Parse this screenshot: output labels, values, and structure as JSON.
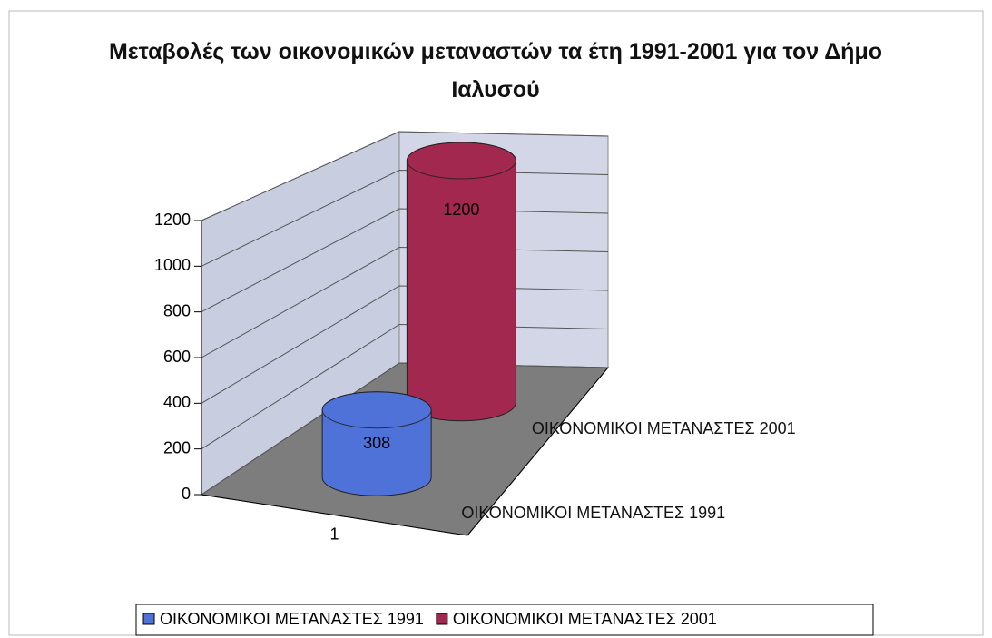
{
  "chart_data": {
    "type": "cylinder3d",
    "title": "Μεταβολές των οικονομικών μεταναστών τα έτη 1991-2001 για τον Δήμο Ιαλυσού",
    "categories": [
      "1"
    ],
    "series": [
      {
        "name": "ΟΙΚΟΝΟΜΙΚΟΙ ΜΕΤΑΝΑΣΤΕΣ 1991",
        "color": "#4f72d8",
        "values": [
          308
        ]
      },
      {
        "name": "ΟΙΚΟΝΟΜΙΚΟΙ ΜΕΤΑΝΑΣΤΕΣ 2001",
        "color": "#a3284f",
        "values": [
          1200
        ]
      }
    ],
    "ylim": [
      0,
      1200
    ],
    "yticks": [
      0,
      200,
      400,
      600,
      800,
      1000,
      1200
    ],
    "grid": true,
    "legend": "bottom"
  }
}
